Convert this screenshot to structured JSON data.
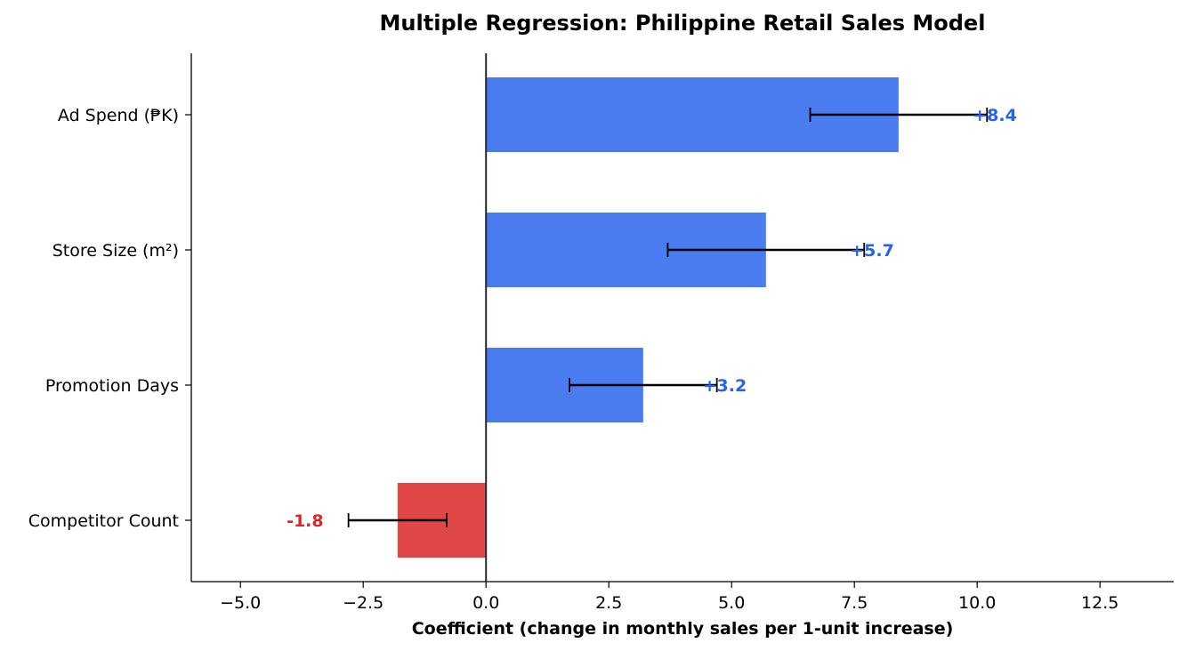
{
  "chart_data": {
    "type": "bar",
    "orientation": "horizontal",
    "title": "Multiple Regression: Philippine Retail Sales Model",
    "xlabel": "Coefficient (change in monthly sales per 1-unit increase)",
    "ylabel": "",
    "xlim": [
      -6.0,
      14.0
    ],
    "xticks": [
      -5.0,
      -2.5,
      0.0,
      2.5,
      5.0,
      7.5,
      10.0,
      12.5
    ],
    "xtick_labels": [
      "−5.0",
      "−2.5",
      "0.0",
      "2.5",
      "5.0",
      "7.5",
      "10.0",
      "12.5"
    ],
    "categories": [
      "Ad Spend (₱K)",
      "Store Size (m²)",
      "Promotion Days",
      "Competitor Count"
    ],
    "values": [
      8.4,
      5.7,
      3.2,
      -1.8
    ],
    "ci_lower": [
      6.6,
      3.7,
      1.7,
      -2.8
    ],
    "ci_upper": [
      10.2,
      7.7,
      4.7,
      -0.8
    ],
    "value_labels": [
      "+8.4",
      "+5.7",
      "+3.2",
      "-1.8"
    ],
    "grid": false,
    "legend": "none",
    "colors": {
      "positive": "#4a7cf0",
      "negative": "#e04848",
      "positive_text": "#2563eb",
      "negative_text": "#dc2626",
      "zero_line": "#1f2937",
      "error_bar": "#000000"
    }
  }
}
